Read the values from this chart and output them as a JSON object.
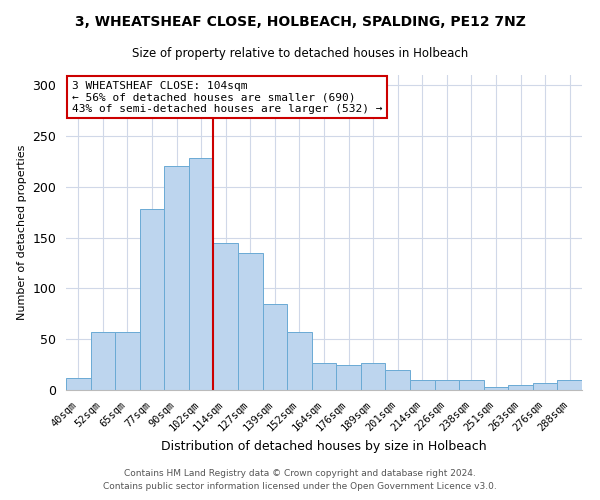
{
  "title1": "3, WHEATSHEAF CLOSE, HOLBEACH, SPALDING, PE12 7NZ",
  "title2": "Size of property relative to detached houses in Holbeach",
  "xlabel": "Distribution of detached houses by size in Holbeach",
  "ylabel": "Number of detached properties",
  "footnote1": "Contains HM Land Registry data © Crown copyright and database right 2024.",
  "footnote2": "Contains public sector information licensed under the Open Government Licence v3.0.",
  "annotation_line1": "3 WHEATSHEAF CLOSE: 104sqm",
  "annotation_line2": "← 56% of detached houses are smaller (690)",
  "annotation_line3": "43% of semi-detached houses are larger (532) →",
  "categories": [
    "40sqm",
    "52sqm",
    "65sqm",
    "77sqm",
    "90sqm",
    "102sqm",
    "114sqm",
    "127sqm",
    "139sqm",
    "152sqm",
    "164sqm",
    "176sqm",
    "189sqm",
    "201sqm",
    "214sqm",
    "226sqm",
    "238sqm",
    "251sqm",
    "263sqm",
    "276sqm",
    "288sqm"
  ],
  "values": [
    12,
    57,
    57,
    178,
    220,
    228,
    145,
    135,
    85,
    57,
    27,
    25,
    27,
    20,
    10,
    10,
    10,
    3,
    5,
    7,
    10
  ],
  "bar_color": "#bdd5ee",
  "bar_edge_color": "#6aaad4",
  "vline_color": "#cc0000",
  "vline_x": 5.5,
  "annotation_box_edge": "#cc0000",
  "annotation_box_face": "#ffffff",
  "background_color": "#ffffff",
  "ylim": [
    0,
    310
  ],
  "yticks": [
    0,
    50,
    100,
    150,
    200,
    250,
    300
  ],
  "grid_color": "#d0d8e8"
}
